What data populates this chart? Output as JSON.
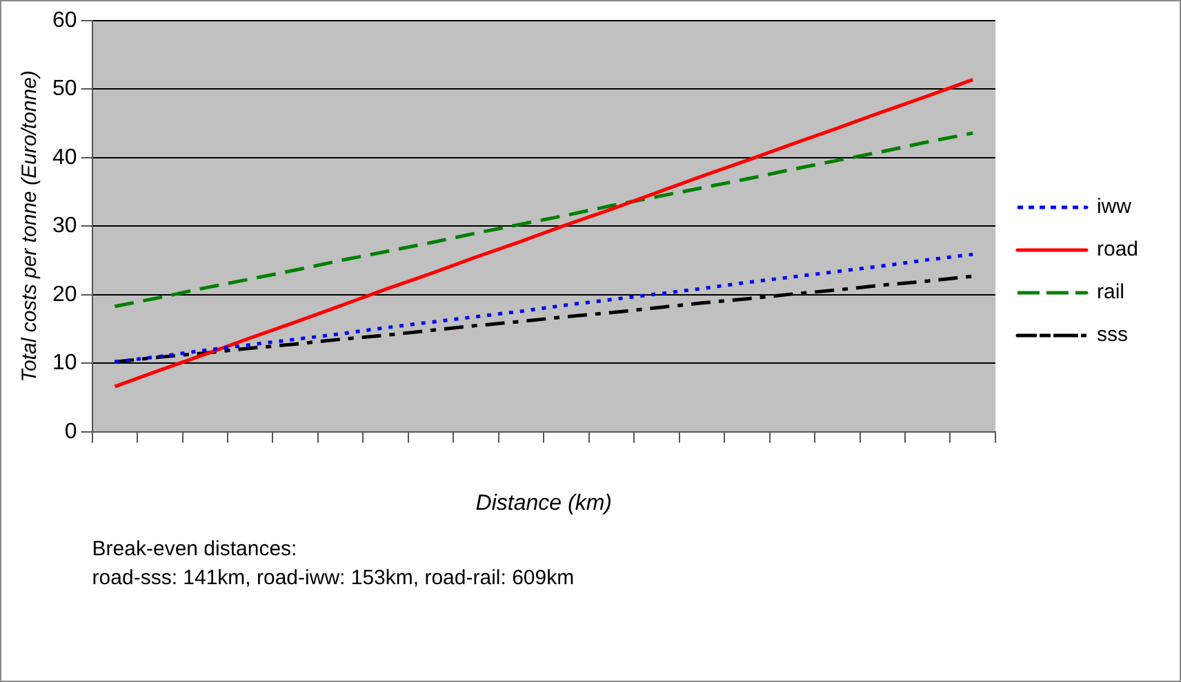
{
  "chart_data": {
    "type": "line",
    "xlabel": "Distance (km)",
    "ylabel": "Total costs per tonne (Euro/tonne)",
    "categories": [
      null,
      null,
      null,
      null,
      null,
      null,
      null,
      null,
      null,
      null,
      null,
      null,
      null,
      null,
      null,
      null,
      null,
      null,
      null,
      null
    ],
    "series": [
      {
        "name": "iww",
        "color": "#0000ff",
        "line_style": "dotted",
        "values": [
          10.2,
          11.0,
          11.9,
          12.7,
          13.5,
          14.3,
          15.2,
          16.0,
          16.8,
          17.6,
          18.5,
          19.3,
          20.1,
          20.9,
          21.8,
          22.6,
          23.4,
          24.2,
          25.1,
          25.9
        ]
      },
      {
        "name": "road",
        "color": "#ff0000",
        "line_style": "solid",
        "values": [
          6.6,
          9.0,
          11.3,
          13.7,
          16.0,
          18.4,
          20.8,
          23.1,
          25.5,
          27.8,
          30.2,
          32.5,
          34.9,
          37.3,
          39.6,
          42.0,
          44.3,
          46.7,
          49.0,
          51.4
        ]
      },
      {
        "name": "rail",
        "color": "#008000",
        "line_style": "dashed",
        "values": [
          18.3,
          19.6,
          21.0,
          22.3,
          23.6,
          25.0,
          26.3,
          27.6,
          29.0,
          30.3,
          31.6,
          33.0,
          34.3,
          35.6,
          36.9,
          38.3,
          39.6,
          40.9,
          42.3,
          43.6
        ]
      },
      {
        "name": "sss",
        "color": "#000000",
        "line_style": "dashdot",
        "values": [
          10.2,
          10.9,
          11.5,
          12.2,
          12.8,
          13.5,
          14.1,
          14.8,
          15.5,
          16.1,
          16.8,
          17.4,
          18.1,
          18.8,
          19.4,
          20.1,
          20.7,
          21.4,
          22.0,
          22.7
        ]
      }
    ],
    "ylim": [
      0,
      60
    ],
    "yticks": [
      0,
      10,
      20,
      30,
      40,
      50,
      60
    ],
    "grid": "y",
    "legend": "right",
    "marker": "none",
    "annotations": [
      "Break-even distances:",
      "road-sss: 141km, road-iww: 153km, road-rail: 609km"
    ]
  }
}
